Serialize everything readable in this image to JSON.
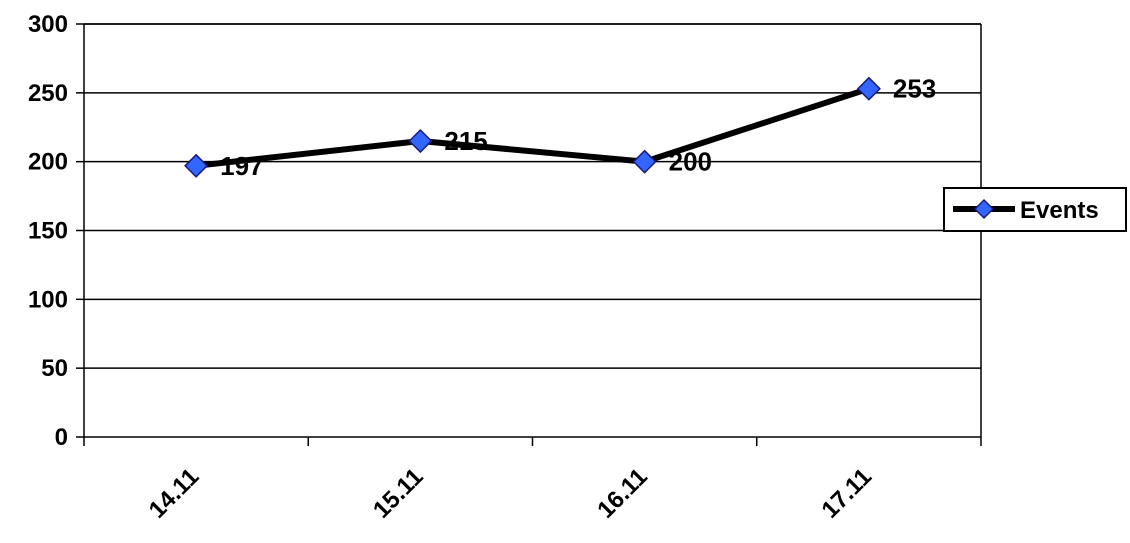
{
  "chart_data": {
    "type": "line",
    "categories": [
      "14.11",
      "15.11",
      "16.11",
      "17.11"
    ],
    "series": [
      {
        "name": "Events",
        "values": [
          197,
          215,
          200,
          253
        ],
        "color": "#000000",
        "marker_color": "#3366ff"
      }
    ],
    "data_labels": [
      "197",
      "215",
      "200",
      "253"
    ],
    "ylim": [
      0,
      300
    ],
    "yticks": [
      0,
      50,
      100,
      150,
      200,
      250,
      300
    ],
    "ytick_labels": [
      "0",
      "50",
      "100",
      "150",
      "200",
      "250",
      "300"
    ],
    "grid": true,
    "legend": {
      "label": "Events",
      "placement": "right"
    },
    "title": "",
    "xlabel": "",
    "ylabel": ""
  }
}
